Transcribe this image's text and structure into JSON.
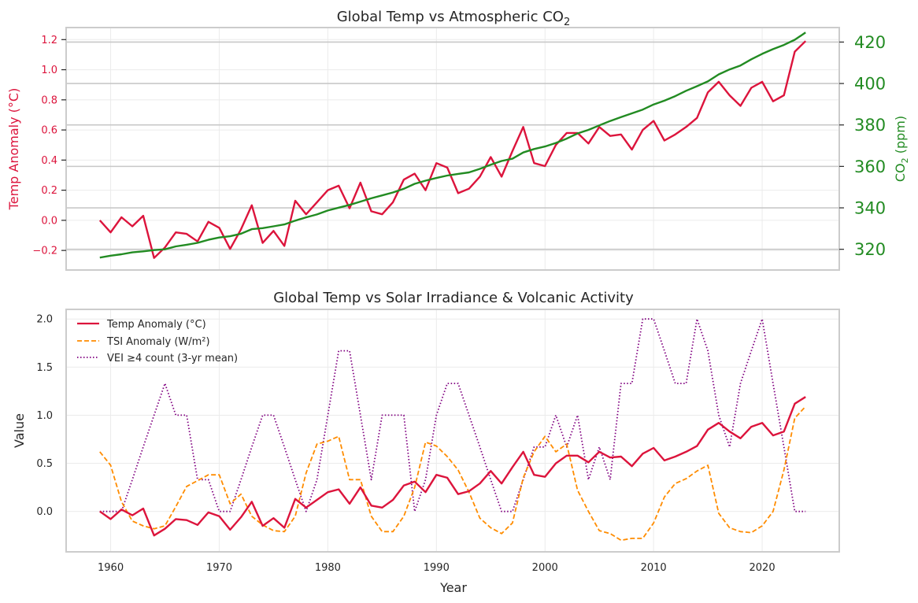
{
  "chart_data": [
    {
      "type": "line",
      "title": "Global Temp vs Atmospheric CO",
      "title_sub": "2",
      "ylabel": "Temp Anomaly (°C)",
      "ylabel_right": "CO",
      "ylabel_right_sub": "2",
      "ylabel_right_suffix": " (ppm)",
      "xlim": [
        1955.9,
        2027.1
      ],
      "ylim": [
        -0.33,
        1.28
      ],
      "ylim_right": [
        310.0,
        427.0
      ],
      "grid": true,
      "yticks": [
        -0.2,
        0.0,
        0.2,
        0.4,
        0.6,
        0.8,
        1.0,
        1.2
      ],
      "ytick_labels": [
        "−0.2",
        "0.0",
        "0.2",
        "0.4",
        "0.6",
        "0.8",
        "1.0",
        "1.2"
      ],
      "yticks_right": [
        320,
        340,
        360,
        380,
        400,
        420
      ],
      "ytick_labels_right": [
        "320",
        "340",
        "360",
        "380",
        "400",
        "420"
      ],
      "xticks": [
        1960,
        1970,
        1980,
        1990,
        2000,
        2010,
        2020
      ],
      "colors": {
        "temp": "#dc143c",
        "co2": "#228b22"
      },
      "x": [
        1959,
        1960,
        1961,
        1962,
        1963,
        1964,
        1965,
        1966,
        1967,
        1968,
        1969,
        1970,
        1971,
        1972,
        1973,
        1974,
        1975,
        1976,
        1977,
        1978,
        1979,
        1980,
        1981,
        1982,
        1983,
        1984,
        1985,
        1986,
        1987,
        1988,
        1989,
        1990,
        1991,
        1992,
        1993,
        1994,
        1995,
        1996,
        1997,
        1998,
        1999,
        2000,
        2001,
        2002,
        2003,
        2004,
        2005,
        2006,
        2007,
        2008,
        2009,
        2010,
        2011,
        2012,
        2013,
        2014,
        2015,
        2016,
        2017,
        2018,
        2019,
        2020,
        2021,
        2022,
        2023,
        2024
      ],
      "series": [
        {
          "key": "temp",
          "axis": "left",
          "values": [
            0.0,
            -0.08,
            0.02,
            -0.04,
            0.03,
            -0.25,
            -0.18,
            -0.08,
            -0.09,
            -0.14,
            -0.01,
            -0.05,
            -0.19,
            -0.06,
            0.1,
            -0.15,
            -0.07,
            -0.17,
            0.13,
            0.04,
            0.12,
            0.2,
            0.23,
            0.08,
            0.25,
            0.06,
            0.04,
            0.12,
            0.27,
            0.31,
            0.2,
            0.38,
            0.35,
            0.18,
            0.21,
            0.29,
            0.42,
            0.29,
            0.46,
            0.62,
            0.38,
            0.36,
            0.5,
            0.58,
            0.58,
            0.51,
            0.62,
            0.56,
            0.57,
            0.47,
            0.6,
            0.66,
            0.53,
            0.57,
            0.62,
            0.68,
            0.85,
            0.92,
            0.83,
            0.76,
            0.88,
            0.92,
            0.79,
            0.83,
            1.12,
            1.19
          ]
        },
        {
          "key": "co2",
          "axis": "right",
          "values": [
            316.0,
            316.9,
            317.6,
            318.5,
            319.0,
            319.6,
            320.0,
            321.4,
            322.2,
            323.1,
            324.6,
            325.7,
            326.3,
            327.5,
            329.7,
            330.2,
            331.1,
            332.0,
            333.8,
            335.4,
            336.8,
            338.7,
            340.1,
            341.4,
            343.0,
            344.6,
            346.0,
            347.4,
            349.2,
            351.6,
            353.1,
            354.4,
            355.6,
            356.4,
            357.1,
            358.8,
            360.8,
            362.6,
            363.7,
            366.7,
            368.4,
            369.6,
            371.3,
            373.4,
            375.9,
            377.6,
            379.8,
            381.9,
            383.8,
            385.6,
            387.4,
            389.9,
            391.7,
            393.9,
            396.5,
            398.7,
            401.0,
            404.4,
            406.8,
            408.7,
            411.7,
            414.3,
            416.6,
            418.6,
            421.1,
            424.6
          ]
        }
      ]
    },
    {
      "type": "line",
      "title": "Global Temp vs Solar Irradiance & Volcanic Activity",
      "xlabel": "Year",
      "ylabel": "Value",
      "xlim": [
        1955.9,
        2027.1
      ],
      "ylim": [
        -0.42,
        2.1
      ],
      "grid": true,
      "legend_position": "upper-left",
      "yticks": [
        0.0,
        0.5,
        1.0,
        1.5,
        2.0
      ],
      "ytick_labels": [
        "0.0",
        "0.5",
        "1.0",
        "1.5",
        "2.0"
      ],
      "xticks": [
        1960,
        1970,
        1980,
        1990,
        2000,
        2010,
        2020
      ],
      "x": [
        1959,
        1960,
        1961,
        1962,
        1963,
        1964,
        1965,
        1966,
        1967,
        1968,
        1969,
        1970,
        1971,
        1972,
        1973,
        1974,
        1975,
        1976,
        1977,
        1978,
        1979,
        1980,
        1981,
        1982,
        1983,
        1984,
        1985,
        1986,
        1987,
        1988,
        1989,
        1990,
        1991,
        1992,
        1993,
        1994,
        1995,
        1996,
        1997,
        1998,
        1999,
        2000,
        2001,
        2002,
        2003,
        2004,
        2005,
        2006,
        2007,
        2008,
        2009,
        2010,
        2011,
        2012,
        2013,
        2014,
        2015,
        2016,
        2017,
        2018,
        2019,
        2020,
        2021,
        2022,
        2023,
        2024
      ],
      "series": [
        {
          "name": "Temp Anomaly (°C)",
          "color": "#dc143c",
          "style": "solid",
          "values": [
            0.0,
            -0.08,
            0.02,
            -0.04,
            0.03,
            -0.25,
            -0.18,
            -0.08,
            -0.09,
            -0.14,
            -0.01,
            -0.05,
            -0.19,
            -0.06,
            0.1,
            -0.15,
            -0.07,
            -0.17,
            0.13,
            0.04,
            0.12,
            0.2,
            0.23,
            0.08,
            0.25,
            0.06,
            0.04,
            0.12,
            0.27,
            0.31,
            0.2,
            0.38,
            0.35,
            0.18,
            0.21,
            0.29,
            0.42,
            0.29,
            0.46,
            0.62,
            0.38,
            0.36,
            0.5,
            0.58,
            0.58,
            0.51,
            0.62,
            0.56,
            0.57,
            0.47,
            0.6,
            0.66,
            0.53,
            0.57,
            0.62,
            0.68,
            0.85,
            0.92,
            0.83,
            0.76,
            0.88,
            0.92,
            0.79,
            0.83,
            1.12,
            1.19
          ]
        },
        {
          "name": "TSI Anomaly (W/m²)",
          "color": "#ff8c00",
          "style": "dashed",
          "values": [
            0.62,
            0.48,
            0.1,
            -0.1,
            -0.15,
            -0.18,
            -0.15,
            0.05,
            0.26,
            0.32,
            0.38,
            0.38,
            0.08,
            0.18,
            -0.05,
            -0.14,
            -0.2,
            -0.21,
            -0.05,
            0.4,
            0.7,
            0.73,
            0.78,
            0.33,
            0.33,
            -0.05,
            -0.21,
            -0.21,
            -0.05,
            0.25,
            0.72,
            0.68,
            0.57,
            0.43,
            0.2,
            -0.07,
            -0.17,
            -0.23,
            -0.12,
            0.35,
            0.62,
            0.78,
            0.62,
            0.7,
            0.22,
            0.0,
            -0.2,
            -0.23,
            -0.3,
            -0.28,
            -0.28,
            -0.12,
            0.15,
            0.29,
            0.34,
            0.42,
            0.48,
            -0.02,
            -0.17,
            -0.21,
            -0.22,
            -0.15,
            0.0,
            0.43,
            0.97,
            1.09
          ]
        },
        {
          "name": "VEI ≥4 count (3-yr mean)",
          "color": "#800080",
          "style": "dotted",
          "values": [
            0.0,
            0.0,
            0.0,
            0.33,
            0.67,
            1.0,
            1.33,
            1.0,
            1.0,
            0.33,
            0.33,
            0.0,
            0.0,
            0.33,
            0.67,
            1.0,
            1.0,
            0.67,
            0.33,
            0.0,
            0.33,
            1.0,
            1.67,
            1.67,
            1.0,
            0.33,
            1.0,
            1.0,
            1.0,
            0.0,
            0.33,
            1.0,
            1.33,
            1.33,
            1.0,
            0.67,
            0.33,
            0.0,
            0.0,
            0.33,
            0.67,
            0.67,
            1.0,
            0.67,
            1.0,
            0.33,
            0.67,
            0.33,
            1.33,
            1.33,
            2.0,
            2.0,
            1.67,
            1.33,
            1.33,
            2.0,
            1.67,
            1.0,
            0.67,
            1.33,
            1.67,
            2.0,
            1.33,
            0.67,
            0.0,
            0.0
          ]
        }
      ]
    }
  ]
}
